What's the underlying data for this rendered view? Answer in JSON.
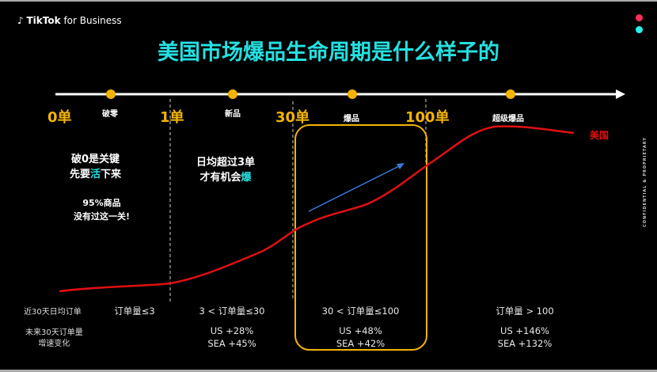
{
  "brand": {
    "name": "TikTok",
    "suffix": "for Business"
  },
  "title": "美国市场爆品生命周期是什么样子的",
  "side_text": "CONFIDENTIAL & PROPRIETARY",
  "colors": {
    "title": "#25e0e0",
    "accent": "#f3b400",
    "curve": "#e01010",
    "arrow": "#3a7ad8",
    "dot_red": "#ff2d55",
    "dot_cyan": "#25f4ee"
  },
  "timeline": {
    "ticks": [
      "0单",
      "1单",
      "30单",
      "100单"
    ],
    "stages": [
      "破零",
      "新品",
      "爆品",
      "超级爆品"
    ]
  },
  "notes": {
    "n1_line1": "破0是关键",
    "n1_line2_a": "先要",
    "n1_line2_b": "活",
    "n1_line2_c": "下来",
    "n1_sub1": "95%商品",
    "n1_sub2": "没有过这一关!",
    "n2_line1": "日均超过3单",
    "n2_line2_a": "才有机会",
    "n2_line2_b": "爆"
  },
  "curve_label": "美国",
  "table": {
    "row1_label": "近30天日均订单",
    "row2_label_1": "未来30天订单量",
    "row2_label_2": "增速变化",
    "cols": [
      {
        "orders": "订单量≤3",
        "us": "",
        "sea": ""
      },
      {
        "orders": "3 < 订单量≤30",
        "us": "US +28%",
        "sea": "SEA +45%"
      },
      {
        "orders": "30 < 订单量≤100",
        "us": "US +48%",
        "sea": "SEA +42%"
      },
      {
        "orders": "订单量 > 100",
        "us": "US +146%",
        "sea": "SEA +132%"
      }
    ]
  }
}
